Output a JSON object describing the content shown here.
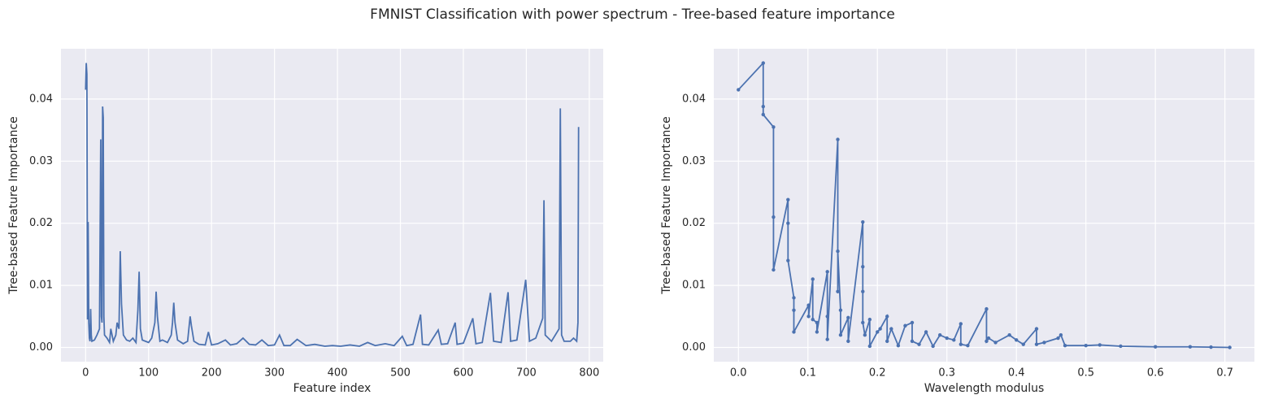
{
  "title": "FMNIST Classification with power spectrum - Tree-based feature importance",
  "chart_data": [
    {
      "type": "line",
      "xlabel": "Feature index",
      "ylabel": "Tree-based Feature Importance",
      "color": "#4c72b0",
      "grid": true,
      "markers": false,
      "xlim": [
        -39.15,
        822.15
      ],
      "ylim": [
        -0.00229,
        0.0481
      ],
      "xticks": [
        0,
        100,
        200,
        300,
        400,
        500,
        600,
        700,
        800
      ],
      "yticks": [
        {
          "value": 0,
          "label": "0.00"
        },
        0.01,
        0.02,
        0.03,
        0.04
      ],
      "x": [
        0,
        1,
        2,
        3,
        4,
        5,
        6,
        7,
        8,
        9,
        10,
        14,
        18,
        22,
        24,
        25,
        26,
        27,
        28,
        29,
        30,
        34,
        38,
        40,
        44,
        48,
        50,
        53,
        55,
        57,
        60,
        65,
        70,
        75,
        80,
        83,
        85,
        87,
        90,
        95,
        100,
        105,
        110,
        112,
        114,
        118,
        122,
        130,
        136,
        138,
        140,
        142,
        146,
        155,
        162,
        166,
        168,
        172,
        180,
        190,
        195,
        200,
        210,
        222,
        230,
        240,
        250,
        260,
        270,
        280,
        290,
        300,
        308,
        315,
        325,
        336,
        350,
        364,
        380,
        392,
        405,
        420,
        435,
        448,
        460,
        476,
        490,
        503,
        510,
        520,
        532,
        535,
        545,
        560,
        565,
        575,
        587,
        590,
        600,
        615,
        620,
        630,
        643,
        648,
        660,
        671,
        675,
        685,
        699,
        705,
        715,
        726,
        728,
        730,
        740,
        752,
        754,
        756,
        760,
        770,
        775,
        780,
        782,
        783
      ],
      "values": [
        0.0415,
        0.0458,
        0.044,
        0.0045,
        0.0202,
        0.004,
        0.0015,
        0.001,
        0.0062,
        0.002,
        0.001,
        0.0012,
        0.002,
        0.003,
        0.0335,
        0.005,
        0.004,
        0.0388,
        0.037,
        0.005,
        0.002,
        0.0015,
        0.0008,
        0.003,
        0.001,
        0.002,
        0.004,
        0.003,
        0.0155,
        0.007,
        0.002,
        0.0012,
        0.001,
        0.0015,
        0.0008,
        0.006,
        0.0122,
        0.003,
        0.0012,
        0.001,
        0.0008,
        0.0015,
        0.004,
        0.009,
        0.005,
        0.001,
        0.0012,
        0.0008,
        0.002,
        0.004,
        0.0072,
        0.004,
        0.0012,
        0.0006,
        0.001,
        0.005,
        0.0035,
        0.001,
        0.0005,
        0.0004,
        0.0025,
        0.0004,
        0.0006,
        0.0012,
        0.0004,
        0.0006,
        0.0015,
        0.0005,
        0.0004,
        0.0012,
        0.0003,
        0.0004,
        0.002,
        0.0003,
        0.0003,
        0.0013,
        0.0003,
        0.0005,
        0.0002,
        0.0003,
        0.0002,
        0.0004,
        0.0002,
        0.0008,
        0.0003,
        0.0006,
        0.0003,
        0.0018,
        0.0003,
        0.0005,
        0.0053,
        0.0005,
        0.0004,
        0.0028,
        0.0005,
        0.0006,
        0.004,
        0.0005,
        0.0007,
        0.0047,
        0.0006,
        0.0008,
        0.0088,
        0.001,
        0.0008,
        0.0089,
        0.001,
        0.0012,
        0.0109,
        0.001,
        0.0015,
        0.0047,
        0.0237,
        0.002,
        0.001,
        0.003,
        0.0385,
        0.002,
        0.001,
        0.001,
        0.0015,
        0.001,
        0.004,
        0.0355
      ]
    },
    {
      "type": "line",
      "xlabel": "Wavelength modulus",
      "ylabel": "Tree-based Feature Importance",
      "color": "#4c72b0",
      "grid": true,
      "markers": true,
      "xlim": [
        -0.0354,
        0.7425
      ],
      "ylim": [
        -0.00229,
        0.0481
      ],
      "xticks": [
        {
          "value": 0,
          "label": "0.0"
        },
        0.1,
        0.2,
        0.3,
        0.4,
        0.5,
        0.6,
        0.7
      ],
      "yticks": [
        {
          "value": 0,
          "label": "0.00"
        },
        0.01,
        0.02,
        0.03,
        0.04
      ],
      "x": [
        0,
        0.0357,
        0.0357,
        0.0357,
        0.0505,
        0.0505,
        0.0505,
        0.0714,
        0.0714,
        0.0714,
        0.0798,
        0.0798,
        0.0798,
        0.101,
        0.101,
        0.107,
        0.107,
        0.113,
        0.113,
        0.128,
        0.128,
        0.128,
        0.143,
        0.143,
        0.143,
        0.147,
        0.147,
        0.158,
        0.158,
        0.179,
        0.179,
        0.179,
        0.179,
        0.182,
        0.189,
        0.189,
        0.2,
        0.204,
        0.214,
        0.214,
        0.22,
        0.23,
        0.24,
        0.25,
        0.25,
        0.26,
        0.27,
        0.28,
        0.29,
        0.3,
        0.31,
        0.32,
        0.32,
        0.33,
        0.357,
        0.357,
        0.36,
        0.37,
        0.39,
        0.4,
        0.41,
        0.429,
        0.429,
        0.44,
        0.46,
        0.464,
        0.47,
        0.5,
        0.52,
        0.55,
        0.6,
        0.65,
        0.68,
        0.707
      ],
      "values": [
        0.0415,
        0.0458,
        0.0388,
        0.0375,
        0.0355,
        0.021,
        0.0125,
        0.0238,
        0.02,
        0.014,
        0.008,
        0.006,
        0.0025,
        0.0068,
        0.005,
        0.011,
        0.0045,
        0.004,
        0.0025,
        0.0122,
        0.005,
        0.0013,
        0.0335,
        0.009,
        0.0155,
        0.006,
        0.002,
        0.0048,
        0.001,
        0.0202,
        0.013,
        0.009,
        0.004,
        0.002,
        0.0045,
        0.0002,
        0.0025,
        0.003,
        0.005,
        0.001,
        0.003,
        0.0003,
        0.0035,
        0.004,
        0.001,
        0.0005,
        0.0025,
        0.0002,
        0.002,
        0.0015,
        0.0012,
        0.0038,
        0.0005,
        0.0003,
        0.0062,
        0.001,
        0.0015,
        0.0008,
        0.002,
        0.0012,
        0.0005,
        0.003,
        0.0005,
        0.0008,
        0.0015,
        0.002,
        0.0003,
        0.0003,
        0.0004,
        0.0002,
        0.0001,
        0.0001,
        5e-05,
        0
      ]
    }
  ]
}
